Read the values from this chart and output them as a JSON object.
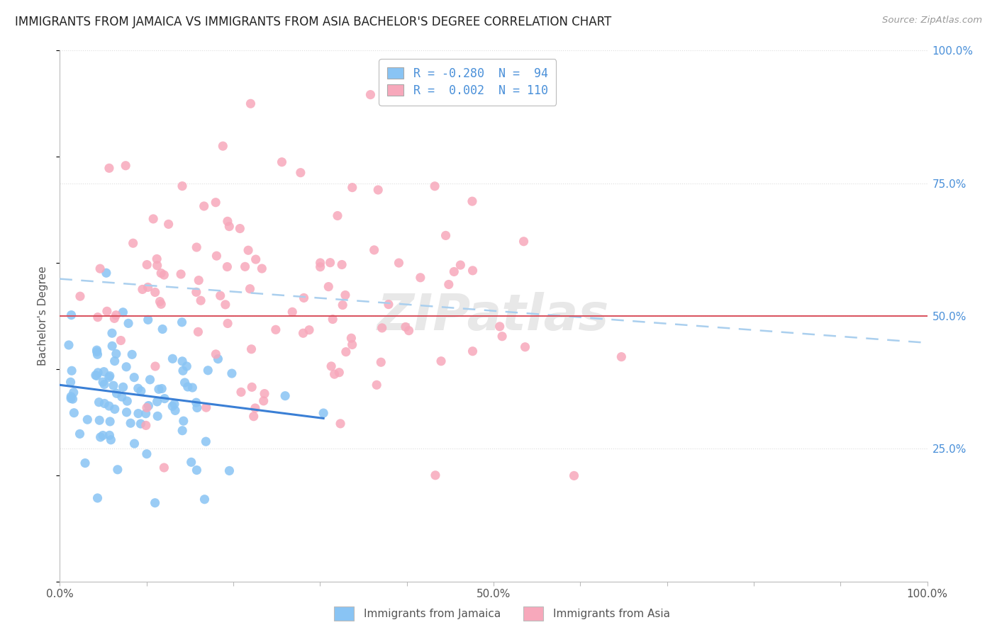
{
  "title": "IMMIGRANTS FROM JAMAICA VS IMMIGRANTS FROM ASIA BACHELOR'S DEGREE CORRELATION CHART",
  "source": "Source: ZipAtlas.com",
  "ylabel": "Bachelor's Degree",
  "color_jamaica": "#89c4f4",
  "color_asia": "#f7a8bb",
  "trendline_jamaica_color": "#3a7fd5",
  "trendline_asia_color": "#aacfee",
  "hline_color": "#d94f5c",
  "grid_color": "#dddddd",
  "background_color": "#ffffff",
  "ytick_color": "#4a90d9",
  "xtick_color": "#555555",
  "title_color": "#222222",
  "source_color": "#999999",
  "legend_text_color": "#4a90d9",
  "bottom_legend_color": "#555555"
}
